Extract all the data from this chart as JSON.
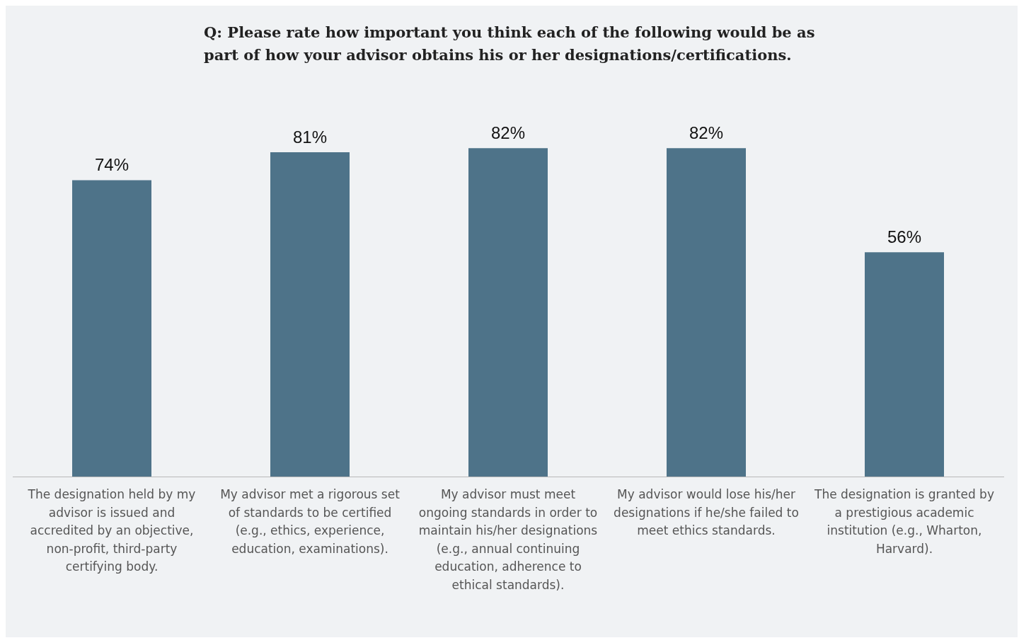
{
  "chart_data": {
    "type": "bar",
    "title": "Q: Please rate how important you think each of the following would be as\npart of how your advisor obtains his or her designations/certifications.",
    "categories": [
      "The designation held by my advisor is issued and accredited by an objective, non-profit, third-party certifying body.",
      "My advisor met a rigorous set of standards to be certified (e.g., ethics, experience, education, examinations).",
      "My advisor must meet ongoing standards in order to maintain his/her designations (e.g., annual continuing education, adherence to ethical standards).",
      "My advisor would lose his/her designations if he/she failed to meet ethics standards.",
      "The designation is granted by a prestigious academic institution (e.g., Wharton, Harvard)."
    ],
    "values": [
      74,
      81,
      82,
      82,
      56
    ],
    "value_labels": [
      "74%",
      "81%",
      "82%",
      "82%",
      "56%"
    ],
    "color": "#4e7389"
  }
}
